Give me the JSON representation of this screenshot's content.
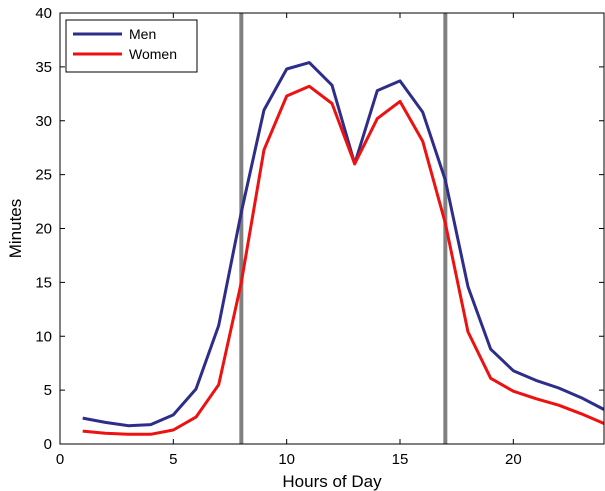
{
  "chart_data": {
    "type": "line",
    "title": "",
    "xlabel": "Hours of Day",
    "ylabel": "Minutes",
    "xlim": [
      0,
      24
    ],
    "ylim": [
      0,
      40
    ],
    "xticks": [
      0,
      5,
      10,
      15,
      20
    ],
    "yticks": [
      0,
      5,
      10,
      15,
      20,
      25,
      30,
      35,
      40
    ],
    "grid": false,
    "legend_position": "top-left",
    "x": [
      1,
      2,
      3,
      4,
      5,
      6,
      7,
      8,
      9,
      10,
      11,
      12,
      13,
      14,
      15,
      16,
      17,
      18,
      19,
      20,
      21,
      22,
      23,
      24
    ],
    "series": [
      {
        "name": "Men",
        "color": "#2e2e8a",
        "values": [
          2.4,
          2.0,
          1.7,
          1.8,
          2.7,
          5.1,
          11.0,
          21.5,
          31.0,
          34.8,
          35.4,
          33.3,
          26.0,
          32.8,
          33.7,
          30.8,
          24.5,
          14.6,
          8.8,
          6.8,
          5.9,
          5.2,
          4.3,
          3.2
        ]
      },
      {
        "name": "Women",
        "color": "#ee1111",
        "values": [
          1.2,
          1.0,
          0.9,
          0.9,
          1.3,
          2.5,
          5.5,
          15.0,
          27.3,
          32.3,
          33.2,
          31.6,
          26.0,
          30.2,
          31.8,
          28.1,
          20.5,
          10.4,
          6.1,
          4.9,
          4.2,
          3.6,
          2.8,
          1.9
        ]
      }
    ],
    "vertical_lines": [
      {
        "x": 8,
        "color": "#808080"
      },
      {
        "x": 17,
        "color": "#808080"
      }
    ]
  }
}
